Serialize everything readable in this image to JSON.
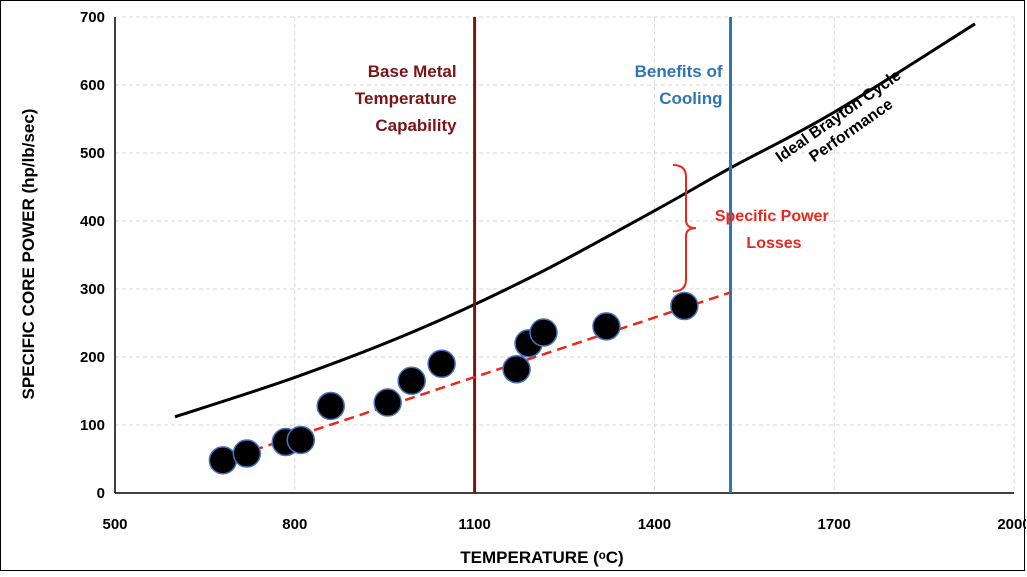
{
  "chart_data": {
    "type": "scatter",
    "title": "",
    "xlabel": "TEMPERATURE (ᵒC)",
    "ylabel": "SPECIFIC CORE POWER (hp/lb/sec)",
    "xlim": [
      500,
      2000
    ],
    "ylim": [
      0,
      700
    ],
    "x_ticks": [
      500,
      800,
      1100,
      1400,
      1700,
      2000
    ],
    "y_ticks": [
      0,
      100,
      200,
      300,
      400,
      500,
      600,
      700
    ],
    "grid": true,
    "points": [
      {
        "x": 680,
        "y": 48
      },
      {
        "x": 720,
        "y": 58
      },
      {
        "x": 785,
        "y": 75
      },
      {
        "x": 810,
        "y": 78
      },
      {
        "x": 860,
        "y": 128
      },
      {
        "x": 955,
        "y": 133
      },
      {
        "x": 995,
        "y": 165
      },
      {
        "x": 1045,
        "y": 190
      },
      {
        "x": 1170,
        "y": 182
      },
      {
        "x": 1190,
        "y": 220
      },
      {
        "x": 1215,
        "y": 236
      },
      {
        "x": 1320,
        "y": 245
      },
      {
        "x": 1450,
        "y": 275
      }
    ],
    "ideal_curve": {
      "name": "Ideal Brayton Cycle Performance",
      "color": "#000000",
      "points": [
        [
          600,
          112
        ],
        [
          800,
          170
        ],
        [
          1000,
          238
        ],
        [
          1200,
          320
        ],
        [
          1400,
          415
        ],
        [
          1527,
          478
        ],
        [
          1700,
          560
        ],
        [
          1935,
          690
        ]
      ]
    },
    "trend_line": {
      "color": "#e8281c",
      "points": [
        [
          680,
          48
        ],
        [
          1527,
          295
        ]
      ]
    },
    "vertical_lines": [
      {
        "x": 1100,
        "color": "#7b1416",
        "label": [
          "Base Metal",
          "Temperature",
          "Capability"
        ]
      },
      {
        "x": 1527,
        "color": "#2e75b6",
        "label": [
          "Benefits of",
          "Cooling"
        ]
      }
    ],
    "annotations": {
      "curve_label": [
        "Ideal Brayton Cycle",
        "Performance"
      ],
      "losses_label": [
        "Specific Power",
        "Losses"
      ],
      "losses_range": [
        295,
        478
      ]
    }
  },
  "colors": {
    "marker_fill": "#000000",
    "marker_stroke": "#4472c4",
    "grid": "#d9d9d9",
    "losses_text": "#e8281c"
  }
}
